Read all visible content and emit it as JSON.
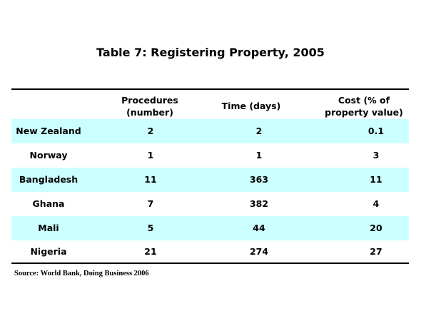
{
  "title": "Table 7: Registering Property, 2005",
  "headers": {
    "procedures": "Procedures (number)",
    "time": "Time (days)",
    "cost": "Cost (% of property value)"
  },
  "rows": [
    {
      "country": "New Zealand",
      "procedures": "2",
      "time": "2",
      "cost": "0.1",
      "shaded": true
    },
    {
      "country": "Norway",
      "procedures": "1",
      "time": "1",
      "cost": "3",
      "shaded": false
    },
    {
      "country": "Bangladesh",
      "procedures": "11",
      "time": "363",
      "cost": "11",
      "shaded": true
    },
    {
      "country": "Ghana",
      "procedures": "7",
      "time": "382",
      "cost": "4",
      "shaded": false
    },
    {
      "country": "Mali",
      "procedures": "5",
      "time": "44",
      "cost": "20",
      "shaded": true
    },
    {
      "country": "Nigeria",
      "procedures": "21",
      "time": "274",
      "cost": "27",
      "shaded": false
    }
  ],
  "source": "Source: World Bank, Doing Business 2006",
  "colors": {
    "row_shade": "#ccffff",
    "rule": "#000000"
  }
}
